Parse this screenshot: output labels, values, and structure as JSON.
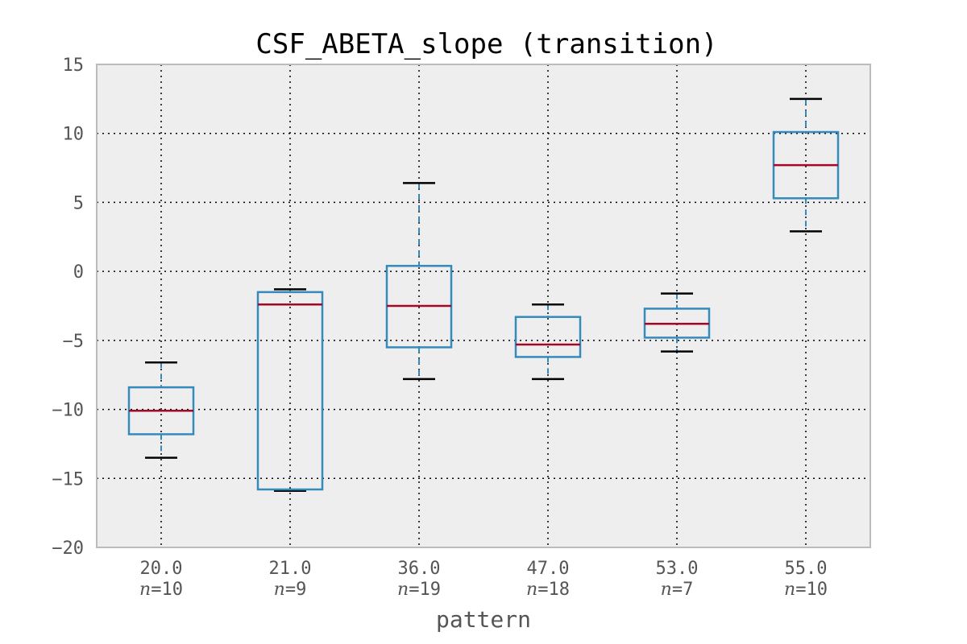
{
  "chart_data": {
    "type": "box",
    "title": "CSF_ABETA_slope (transition)",
    "xlabel": "pattern",
    "ylabel": "",
    "ylim": [
      -20,
      15
    ],
    "yticks": [
      15,
      10,
      5,
      0,
      -5,
      -10,
      -15,
      -20
    ],
    "ytick_labels": [
      "15",
      "10",
      "5",
      "0",
      "−5",
      "−10",
      "−15",
      "−20"
    ],
    "grid": true,
    "categories": [
      "20.0",
      "21.0",
      "36.0",
      "47.0",
      "53.0",
      "55.0"
    ],
    "n_prefix": "n",
    "n_values": [
      "=10",
      "=9",
      "=19",
      "=18",
      "=7",
      "=10"
    ],
    "boxes": [
      {
        "whislo": -13.5,
        "q1": -11.8,
        "med": -10.1,
        "q3": -8.4,
        "whishi": -6.6
      },
      {
        "whislo": -15.9,
        "q1": -15.8,
        "med": -2.4,
        "q3": -1.5,
        "whishi": -1.3
      },
      {
        "whislo": -7.8,
        "q1": -5.5,
        "med": -2.5,
        "q3": 0.4,
        "whishi": 6.4
      },
      {
        "whislo": -7.8,
        "q1": -6.2,
        "med": -5.3,
        "q3": -3.3,
        "whishi": -2.4
      },
      {
        "whislo": -5.8,
        "q1": -4.8,
        "med": -3.8,
        "q3": -2.7,
        "whishi": -1.6
      },
      {
        "whislo": 2.9,
        "q1": 5.3,
        "med": 7.7,
        "q3": 10.1,
        "whishi": 12.5
      }
    ],
    "colors": {
      "box": "#348abd",
      "median": "#a60628",
      "cap": "#000000",
      "background": "#eeeeee",
      "frame": "#bcbcbc",
      "grid": "#000000"
    }
  }
}
